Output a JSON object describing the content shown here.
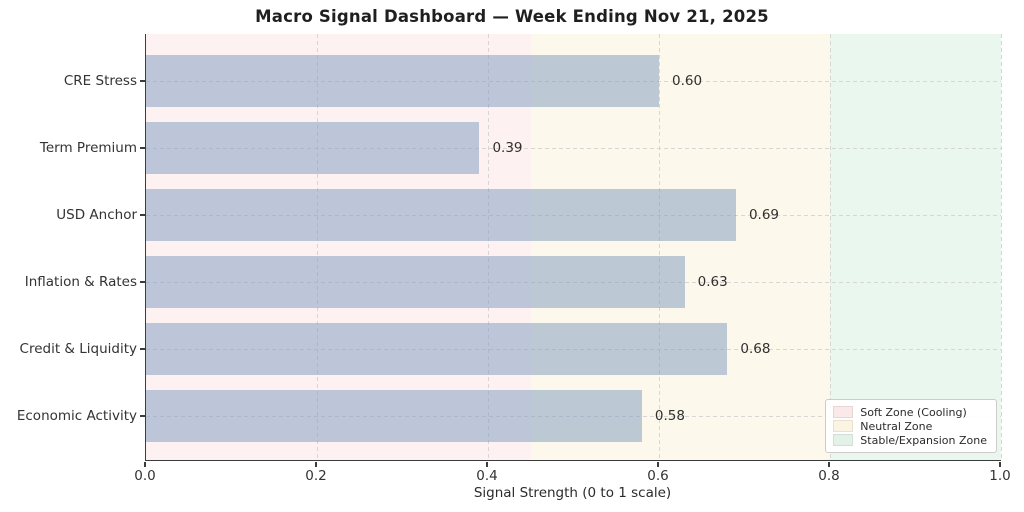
{
  "chart_data": {
    "type": "bar",
    "orientation": "horizontal",
    "title": "Macro Signal Dashboard — Week Ending Nov 21, 2025",
    "xlabel": "Signal Strength (0 to 1 scale)",
    "categories": [
      "CRE Stress",
      "Term Premium",
      "USD Anchor",
      "Inflation & Rates",
      "Credit & Liquidity",
      "Economic Activity"
    ],
    "values": [
      0.6,
      0.39,
      0.69,
      0.63,
      0.68,
      0.58
    ],
    "value_labels": [
      "0.60",
      "0.39",
      "0.69",
      "0.63",
      "0.68",
      "0.58"
    ],
    "xlim": [
      0,
      1
    ],
    "xticks": [
      0.0,
      0.2,
      0.4,
      0.6,
      0.8,
      1.0
    ],
    "xtick_labels": [
      "0.0",
      "0.2",
      "0.4",
      "0.6",
      "0.8",
      "1.0"
    ],
    "grid": "dashed",
    "bar_color": "rgba(136,160,194,0.55)",
    "zones": [
      {
        "name": "Soft Zone (Cooling)",
        "from": 0.0,
        "to": 0.45,
        "color": "#fdf1f2",
        "legend_color": "#fbe9e9"
      },
      {
        "name": "Neutral Zone",
        "from": 0.45,
        "to": 0.8,
        "color": "#fdf8ec",
        "legend_color": "#fcf4e3"
      },
      {
        "name": "Stable/Expansion Zone",
        "from": 0.8,
        "to": 1.0,
        "color": "#eaf7ef",
        "legend_color": "#e3f2e9"
      }
    ],
    "legend_position": "lower right"
  }
}
